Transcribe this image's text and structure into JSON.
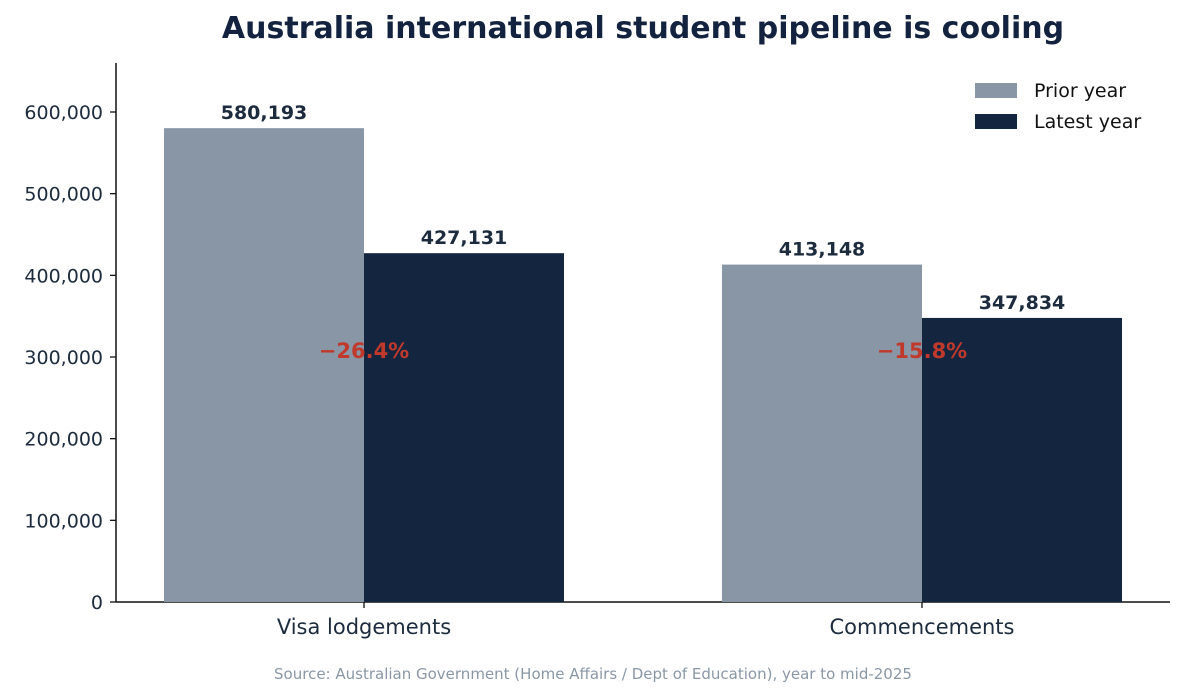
{
  "chart_data": {
    "type": "bar",
    "title": "Australia international student pipeline is cooling",
    "categories": [
      "Visa lodgements",
      "Commencements"
    ],
    "series": [
      {
        "name": "Prior year",
        "values": [
          580193,
          413148
        ],
        "color": "#8896a6"
      },
      {
        "name": "Latest year",
        "values": [
          427131,
          347834
        ],
        "color": "#13253f"
      }
    ],
    "value_labels": [
      [
        "580,193",
        "413,148"
      ],
      [
        "427,131",
        "347,834"
      ]
    ],
    "change_labels": [
      "−26.4%",
      "−15.8%"
    ],
    "change_color": "#c0392b",
    "ylim": [
      0,
      660000
    ],
    "yticks": [
      0,
      100000,
      200000,
      300000,
      400000,
      500000,
      600000
    ],
    "ytick_labels": [
      "0",
      "100,000",
      "200,000",
      "300,000",
      "400,000",
      "500,000",
      "600,000"
    ],
    "xlabel": "",
    "ylabel": "",
    "grid": false,
    "legend_position": "top-right",
    "source": "Source: Australian Government (Home Affairs / Dept of Education), year to mid-2025"
  }
}
